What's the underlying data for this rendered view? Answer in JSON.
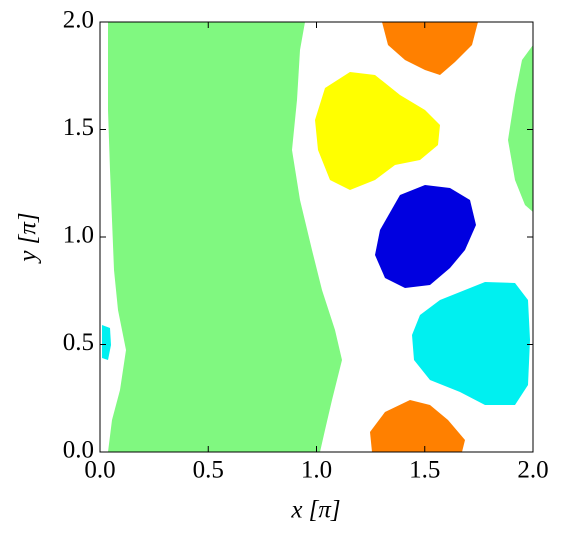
{
  "chart_data": {
    "type": "region",
    "xlabel": "x [π]",
    "ylabel": "y [π]",
    "xlim": [
      0,
      2
    ],
    "ylim": [
      0,
      2
    ],
    "xticks": [
      {
        "value": 0,
        "label": "0.0"
      },
      0.5,
      {
        "value": 1,
        "label": "1.0"
      },
      1.5,
      {
        "value": 2,
        "label": "2.0"
      }
    ],
    "yticks": [
      {
        "value": 0,
        "label": "0.0"
      },
      0.5,
      {
        "value": 1,
        "label": "1.0"
      },
      1.5,
      {
        "value": 2,
        "label": "2.0"
      }
    ]
  }
}
